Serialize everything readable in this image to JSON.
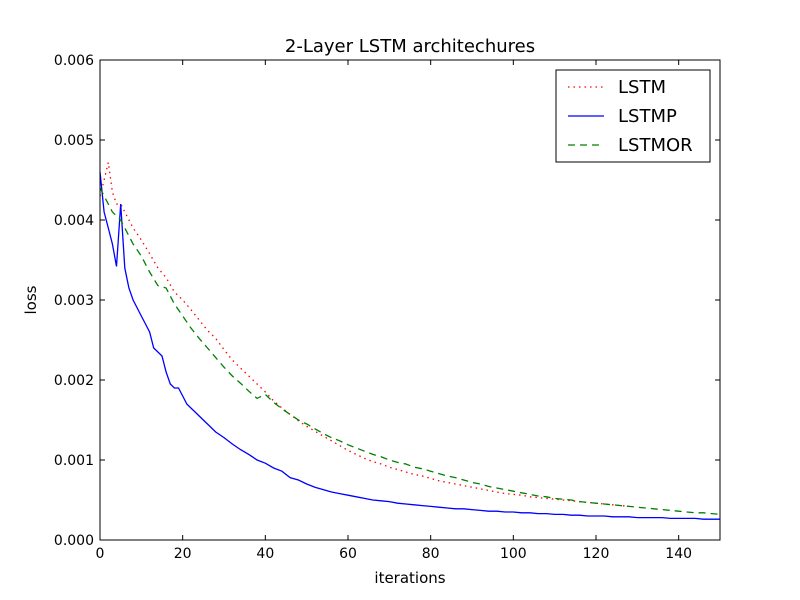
{
  "chart_data": {
    "type": "line",
    "title": "2-Layer LSTM architechures",
    "xlabel": "iterations",
    "ylabel": "loss",
    "xlim": [
      0,
      150
    ],
    "ylim": [
      0,
      0.006
    ],
    "xticks": [
      0,
      20,
      40,
      60,
      80,
      100,
      120,
      140
    ],
    "xtick_labels": [
      "0",
      "20",
      "40",
      "60",
      "80",
      "100",
      "120",
      "140"
    ],
    "yticks": [
      0,
      0.001,
      0.002,
      0.003,
      0.004,
      0.005,
      0.006
    ],
    "ytick_labels": [
      "0.000",
      "0.001",
      "0.002",
      "0.003",
      "0.004",
      "0.005",
      "0.006"
    ],
    "grid": false,
    "legend": "top-right",
    "series": [
      {
        "name": "LSTM",
        "color": "#ff0000",
        "style": "dotted",
        "x": [
          0,
          1,
          2,
          3,
          4,
          5,
          6,
          8,
          10,
          12,
          14,
          16,
          18,
          20,
          22,
          24,
          26,
          28,
          30,
          32,
          34,
          36,
          38,
          40,
          42,
          44,
          46,
          48,
          50,
          52,
          54,
          56,
          58,
          60,
          62,
          64,
          66,
          68,
          70,
          72,
          74,
          76,
          78,
          80,
          82,
          84,
          86,
          88,
          90,
          92,
          94,
          96,
          98,
          100,
          102,
          104,
          106,
          108,
          110,
          112,
          114,
          116,
          118,
          120,
          122,
          124,
          126,
          128
        ],
        "y": [
          0.0043,
          0.0045,
          0.00472,
          0.00435,
          0.0042,
          0.0042,
          0.0041,
          0.0039,
          0.00375,
          0.00358,
          0.0034,
          0.00328,
          0.0031,
          0.003,
          0.00288,
          0.00275,
          0.00262,
          0.00252,
          0.00238,
          0.00225,
          0.00215,
          0.00205,
          0.00195,
          0.00185,
          0.00174,
          0.00165,
          0.00157,
          0.00149,
          0.00142,
          0.00136,
          0.0013,
          0.00124,
          0.00118,
          0.00112,
          0.00107,
          0.00102,
          0.00098,
          0.00095,
          0.00091,
          0.00088,
          0.00085,
          0.00082,
          0.0008,
          0.00077,
          0.00074,
          0.00072,
          0.0007,
          0.00068,
          0.00066,
          0.00064,
          0.00062,
          0.0006,
          0.00058,
          0.00057,
          0.00056,
          0.00054,
          0.00053,
          0.00052,
          0.00051,
          0.0005,
          0.00049,
          0.00048,
          0.00047,
          0.00046,
          0.00045,
          0.00044,
          0.00043,
          0.00042
        ]
      },
      {
        "name": "LSTMP",
        "color": "#0000ff",
        "style": "solid",
        "x": [
          0,
          1,
          2,
          3,
          4,
          5,
          6,
          7,
          8,
          9,
          10,
          11,
          12,
          13,
          14,
          15,
          16,
          17,
          18,
          19,
          20,
          21,
          22,
          23,
          24,
          25,
          26,
          28,
          30,
          32,
          34,
          36,
          38,
          40,
          42,
          44,
          46,
          48,
          50,
          52,
          54,
          56,
          58,
          60,
          62,
          64,
          66,
          68,
          70,
          72,
          74,
          76,
          78,
          80,
          82,
          84,
          86,
          88,
          90,
          92,
          94,
          96,
          98,
          100,
          102,
          104,
          106,
          108,
          110,
          112,
          114,
          116,
          118,
          120,
          122,
          124,
          126,
          128,
          130,
          132,
          134,
          136,
          138,
          140,
          142,
          144,
          146,
          148,
          150
        ],
        "y": [
          0.0046,
          0.0041,
          0.0039,
          0.0037,
          0.00342,
          0.0042,
          0.0034,
          0.00315,
          0.003,
          0.0029,
          0.0028,
          0.0027,
          0.0026,
          0.0024,
          0.00235,
          0.0023,
          0.0021,
          0.00195,
          0.0019,
          0.0019,
          0.0018,
          0.0017,
          0.00165,
          0.0016,
          0.00155,
          0.0015,
          0.00145,
          0.00135,
          0.00128,
          0.0012,
          0.00113,
          0.00107,
          0.001,
          0.00096,
          0.0009,
          0.00086,
          0.00078,
          0.00075,
          0.0007,
          0.00066,
          0.00063,
          0.0006,
          0.00058,
          0.00056,
          0.00054,
          0.00052,
          0.0005,
          0.00049,
          0.00048,
          0.00046,
          0.00045,
          0.00044,
          0.00043,
          0.00042,
          0.00041,
          0.0004,
          0.00039,
          0.00039,
          0.00038,
          0.00037,
          0.00036,
          0.00036,
          0.00035,
          0.00035,
          0.00034,
          0.00034,
          0.00033,
          0.00033,
          0.00032,
          0.00032,
          0.00031,
          0.00031,
          0.0003,
          0.0003,
          0.0003,
          0.00029,
          0.00029,
          0.00029,
          0.00028,
          0.00028,
          0.00028,
          0.00028,
          0.00027,
          0.00027,
          0.00027,
          0.00027,
          0.00026,
          0.00026,
          0.00026
        ]
      },
      {
        "name": "LSTMOR",
        "color": "#008000",
        "style": "dashed",
        "x": [
          0,
          1,
          2,
          3,
          4,
          5,
          6,
          8,
          10,
          12,
          14,
          16,
          18,
          20,
          22,
          24,
          26,
          28,
          30,
          32,
          34,
          36,
          38,
          40,
          42,
          44,
          46,
          48,
          50,
          52,
          54,
          56,
          58,
          60,
          62,
          64,
          66,
          68,
          70,
          72,
          74,
          76,
          78,
          80,
          82,
          84,
          86,
          88,
          90,
          92,
          94,
          96,
          98,
          100,
          102,
          104,
          106,
          108,
          110,
          112,
          114,
          116,
          118,
          120,
          122,
          124,
          126,
          128,
          130,
          132,
          134,
          136,
          138,
          140,
          142,
          144,
          146,
          148,
          150
        ],
        "y": [
          0.0044,
          0.0043,
          0.0042,
          0.0041,
          0.00405,
          0.004,
          0.0039,
          0.0037,
          0.00355,
          0.00335,
          0.00318,
          0.00315,
          0.00295,
          0.0028,
          0.00265,
          0.00252,
          0.0024,
          0.00228,
          0.00216,
          0.00205,
          0.00196,
          0.00186,
          0.00177,
          0.00182,
          0.00172,
          0.00164,
          0.00157,
          0.0015,
          0.00145,
          0.00139,
          0.00133,
          0.00128,
          0.00124,
          0.00119,
          0.00115,
          0.00111,
          0.00107,
          0.00104,
          0.001,
          0.00097,
          0.00095,
          0.00091,
          0.00089,
          0.00086,
          0.00083,
          0.0008,
          0.00078,
          0.00075,
          0.00072,
          0.0007,
          0.00067,
          0.00065,
          0.00063,
          0.00061,
          0.00059,
          0.00057,
          0.00055,
          0.00054,
          0.00052,
          0.00051,
          0.0005,
          0.00048,
          0.00047,
          0.00046,
          0.00045,
          0.00044,
          0.00043,
          0.00042,
          0.00041,
          0.0004,
          0.00039,
          0.00038,
          0.00037,
          0.00036,
          0.00035,
          0.00034,
          0.00034,
          0.00033,
          0.00032
        ]
      }
    ]
  }
}
